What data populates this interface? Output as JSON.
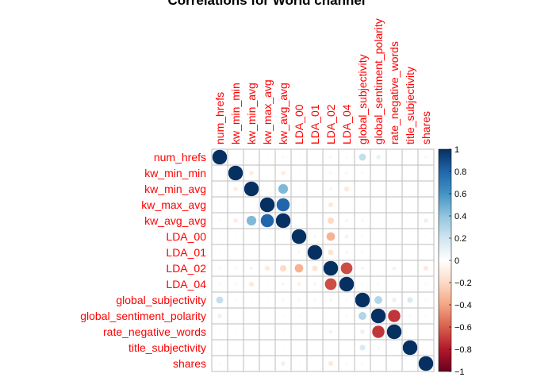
{
  "chart_data": {
    "type": "heatmap",
    "title": "Correlations for World channel",
    "variables": [
      "num_hrefs",
      "kw_min_min",
      "kw_min_avg",
      "kw_max_avg",
      "kw_avg_avg",
      "LDA_00",
      "LDA_01",
      "LDA_02",
      "LDA_04",
      "global_subjectivity",
      "global_sentiment_polarity",
      "rate_negative_words",
      "title_subjectivity",
      "shares"
    ],
    "matrix": [
      [
        1.0,
        0.02,
        0.02,
        0.03,
        0.04,
        0.03,
        0.03,
        0.05,
        0.04,
        0.24,
        0.1,
        0.03,
        0.03,
        0.04
      ],
      [
        0.02,
        1.0,
        -0.1,
        0.02,
        -0.1,
        0.03,
        0.02,
        -0.05,
        0.05,
        0.04,
        0.02,
        0.03,
        0.02,
        0.02
      ],
      [
        0.02,
        -0.1,
        1.0,
        0.02,
        0.45,
        0.03,
        0.02,
        0.06,
        -0.12,
        0.03,
        0.02,
        0.02,
        0.02,
        0.02
      ],
      [
        0.03,
        0.02,
        0.02,
        1.0,
        0.8,
        0.02,
        0.02,
        -0.12,
        0.03,
        0.03,
        0.02,
        0.02,
        0.02,
        0.02
      ],
      [
        0.04,
        -0.1,
        0.45,
        0.8,
        1.0,
        0.03,
        0.02,
        -0.2,
        0.06,
        0.05,
        0.03,
        0.03,
        0.03,
        0.1
      ],
      [
        0.03,
        0.03,
        0.03,
        0.02,
        0.03,
        1.0,
        0.05,
        -0.35,
        -0.08,
        0.04,
        0.03,
        0.02,
        0.02,
        0.03
      ],
      [
        0.03,
        0.02,
        0.02,
        0.02,
        0.02,
        0.05,
        1.0,
        -0.15,
        -0.06,
        0.04,
        0.02,
        0.02,
        0.02,
        0.02
      ],
      [
        0.05,
        -0.05,
        0.06,
        -0.12,
        -0.2,
        -0.35,
        -0.15,
        1.0,
        -0.65,
        -0.06,
        0.03,
        0.08,
        0.02,
        -0.12
      ],
      [
        0.04,
        0.05,
        -0.12,
        0.03,
        0.06,
        -0.08,
        -0.06,
        -0.65,
        1.0,
        0.04,
        0.04,
        -0.02,
        0.02,
        0.04
      ],
      [
        0.24,
        0.04,
        0.03,
        0.03,
        0.05,
        0.04,
        0.04,
        -0.06,
        0.04,
        1.0,
        0.3,
        0.1,
        0.16,
        0.04
      ],
      [
        0.1,
        0.02,
        0.02,
        0.02,
        0.03,
        0.03,
        0.02,
        0.03,
        0.04,
        0.3,
        1.0,
        -0.72,
        0.05,
        0.03
      ],
      [
        0.03,
        0.03,
        0.02,
        0.02,
        0.03,
        0.02,
        0.02,
        0.08,
        -0.02,
        0.1,
        -0.72,
        1.0,
        0.02,
        0.02
      ],
      [
        0.03,
        0.02,
        0.02,
        0.02,
        0.03,
        0.02,
        0.02,
        0.02,
        0.02,
        0.16,
        0.05,
        0.02,
        1.0,
        0.02
      ],
      [
        0.04,
        0.02,
        0.02,
        0.02,
        0.1,
        0.03,
        0.02,
        -0.12,
        0.04,
        0.04,
        0.03,
        0.02,
        0.02,
        1.0
      ]
    ],
    "colorbar": {
      "min": -1,
      "max": 1,
      "ticks": [
        "1",
        "0.8",
        "0.6",
        "0.4",
        "0.2",
        "0",
        "−0.2",
        "−0.4",
        "−0.6",
        "−0.8",
        "−1"
      ],
      "colors": [
        "#67001f",
        "#b2182b",
        "#d6604d",
        "#f4a582",
        "#fddbc7",
        "#ffffff",
        "#d1e5f0",
        "#92c5de",
        "#4393c3",
        "#2166ac",
        "#053061"
      ]
    },
    "label_color": "#ff0000",
    "grid_color": "#bebebe",
    "grid": true,
    "legend_placement": "right"
  }
}
